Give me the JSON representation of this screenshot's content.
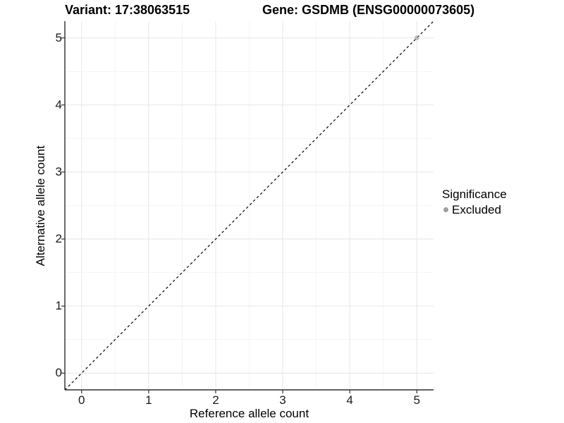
{
  "chart_data": {
    "type": "scatter",
    "title_left": "Variant: 17:38063515",
    "title_right": "Gene: GSDMB (ENSG00000073605)",
    "xlabel": "Reference allele count",
    "ylabel": "Alternative allele count",
    "xlim": [
      -0.25,
      5.25
    ],
    "ylim": [
      -0.25,
      5.25
    ],
    "x_ticks": [
      0,
      1,
      2,
      3,
      4,
      5
    ],
    "y_ticks": [
      0,
      1,
      2,
      3,
      4,
      5
    ],
    "minor_ticks": [
      0.5,
      1.5,
      2.5,
      3.5,
      4.5
    ],
    "grid": true,
    "series": [
      {
        "name": "Excluded",
        "color": "#9e9e9e",
        "point_opacity": 0.65,
        "points": [
          [
            5,
            5
          ]
        ]
      }
    ],
    "reference_line": {
      "style": "dashed",
      "from": [
        -0.25,
        -0.25
      ],
      "to": [
        5.25,
        5.25
      ],
      "color": "#000000"
    },
    "legend": {
      "title": "Significance",
      "position": "right",
      "items": [
        {
          "label": "Excluded",
          "color": "#9e9e9e"
        }
      ]
    },
    "colors": {
      "axis_line": "#2f2f2f",
      "grid_major": "#e6e6e6",
      "grid_minor": "#f2f2f2",
      "tick_mark": "#2f2f2f",
      "background": "#ffffff"
    }
  }
}
